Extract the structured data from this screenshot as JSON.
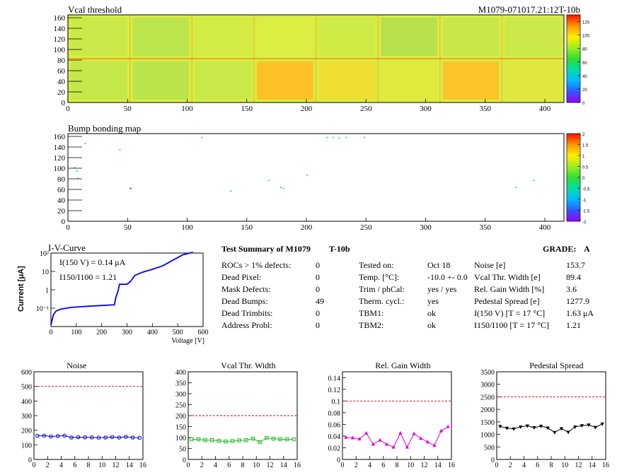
{
  "header": {
    "top_left_title": "Vcal threshold",
    "top_right_id": "M1079-071017.21:12T-10b"
  },
  "vcal_map": {
    "title": "Vcal threshold",
    "x_ticks": [
      "0",
      "50",
      "100",
      "150",
      "200",
      "250",
      "300",
      "350",
      "400"
    ],
    "y_ticks": [
      "0",
      "20",
      "40",
      "60",
      "80",
      "100",
      "120",
      "140",
      "160"
    ],
    "color_ticks": [
      "0",
      "20",
      "40",
      "60",
      "80",
      "100",
      "120"
    ]
  },
  "bump_map": {
    "title": "Bump bonding map",
    "x_ticks": [
      "0",
      "50",
      "100",
      "150",
      "200",
      "250",
      "300",
      "350",
      "400"
    ],
    "y_ticks": [
      "0",
      "20",
      "40",
      "60",
      "80",
      "100",
      "120",
      "140",
      "160"
    ],
    "color_ticks": [
      "-2",
      "-1.5",
      "-1",
      "-0.5",
      "0",
      "0.5",
      "1",
      "1.5",
      "2"
    ]
  },
  "iv_curve": {
    "title": "I-V-Curve",
    "xlabel": "Voltage [V]",
    "ylabel": "Current [μA]",
    "annotation_1": "I(150 V) = 0.14 μA",
    "annotation_2": "I150/I100 = 1.21",
    "x_ticks": [
      "0",
      "100",
      "200",
      "300",
      "400",
      "500",
      "600"
    ],
    "y_ticks": [
      "10⁻¹",
      "1",
      "10",
      "10²"
    ]
  },
  "summary": {
    "title": "Test Summary of M1079",
    "module_type": "T-10b",
    "grade_label": "GRADE:",
    "grade": "A",
    "col1": [
      {
        "label": "ROCs > 1% defects:",
        "value": "0"
      },
      {
        "label": "Dead Pixel:",
        "value": "0"
      },
      {
        "label": "Mask Defects:",
        "value": "0"
      },
      {
        "label": "Dead Bumps:",
        "value": "49"
      },
      {
        "label": "Dead Trimbits:",
        "value": "0"
      },
      {
        "label": "Address Probl:",
        "value": "0"
      }
    ],
    "col2": [
      {
        "label": "Tested on:",
        "value": "Oct 18"
      },
      {
        "label": "Temp. [°C]:",
        "value": "-10.0 +- 0.0"
      },
      {
        "label": "Trim / phCal:",
        "value": "yes / yes"
      },
      {
        "label": "Therm. cycl.:",
        "value": "yes"
      },
      {
        "label": "TBM1:",
        "value": "ok"
      },
      {
        "label": "TBM2:",
        "value": "ok"
      }
    ],
    "col3": [
      {
        "label": "Noise [e]",
        "value": "153.7"
      },
      {
        "label": "Vcal Thr. Width [e]",
        "value": "89.4"
      },
      {
        "label": "Rel. Gain Width [%]",
        "value": "3.6"
      },
      {
        "label": "Pedestal Spread [e]",
        "value": "1277.9"
      },
      {
        "label": "I(150 V) [T = 17 °C]",
        "value": "1.63 μA"
      },
      {
        "label": "I150/I100 [T = 17 °C]",
        "value": "1.21"
      }
    ]
  },
  "chart_data": [
    {
      "type": "line",
      "title": "I-V-Curve",
      "xlabel": "Voltage [V]",
      "ylabel": "Current [μA]",
      "yscale": "log",
      "xlim": [
        0,
        600
      ],
      "ylim": [
        0.01,
        100
      ],
      "x": [
        0,
        5,
        10,
        20,
        40,
        80,
        120,
        160,
        200,
        240,
        250,
        255,
        265,
        270,
        280,
        300,
        315,
        330,
        360,
        400,
        440,
        480,
        520,
        560
      ],
      "y": [
        0.012,
        0.025,
        0.045,
        0.07,
        0.09,
        0.11,
        0.12,
        0.13,
        0.14,
        0.15,
        0.15,
        0.35,
        0.9,
        2.0,
        2.0,
        2.0,
        3.0,
        6.0,
        9.0,
        13.0,
        20.0,
        40.0,
        80.0,
        110.0
      ]
    },
    {
      "type": "line",
      "title": "Noise",
      "xlim": [
        0,
        16
      ],
      "ylim": [
        0,
        600
      ],
      "x_ticks": [
        "0",
        "2",
        "4",
        "6",
        "8",
        "10",
        "12",
        "14",
        "16"
      ],
      "y_ticks": [
        "0",
        "100",
        "200",
        "300",
        "400",
        "500",
        "600"
      ],
      "threshold": 500,
      "color": "#0000cc",
      "x": [
        0,
        1,
        2,
        3,
        4,
        5,
        6,
        7,
        8,
        9,
        10,
        11,
        12,
        13,
        14,
        15
      ],
      "values": [
        162,
        163,
        157,
        160,
        163,
        150,
        152,
        151,
        151,
        149,
        150,
        153,
        150,
        155,
        150,
        148
      ]
    },
    {
      "type": "line",
      "title": "Vcal Thr. Width",
      "xlim": [
        0,
        16
      ],
      "ylim": [
        0,
        400
      ],
      "x_ticks": [
        "0",
        "2",
        "4",
        "6",
        "8",
        "10",
        "12",
        "14",
        "16"
      ],
      "y_ticks": [
        "0",
        "50",
        "100",
        "150",
        "200",
        "250",
        "300",
        "350",
        "400"
      ],
      "threshold": 200,
      "color": "#22bb22",
      "x": [
        0,
        1,
        2,
        3,
        4,
        5,
        6,
        7,
        8,
        9,
        10,
        11,
        12,
        13,
        14,
        15
      ],
      "values": [
        92,
        92,
        88,
        88,
        85,
        82,
        84,
        87,
        88,
        95,
        79,
        98,
        95,
        92,
        92,
        92
      ]
    },
    {
      "type": "line",
      "title": "Rel. Gain Width",
      "xlim": [
        0,
        16
      ],
      "ylim": [
        0,
        0.15
      ],
      "x_ticks": [
        "0",
        "2",
        "4",
        "6",
        "8",
        "10",
        "12",
        "14",
        "16"
      ],
      "y_ticks": [
        "0",
        "0.02",
        "0.04",
        "0.06",
        "0.08",
        "0.1",
        "0.12",
        "0.14"
      ],
      "threshold": 0.1,
      "color": "#dd00dd",
      "x": [
        0,
        1,
        2,
        3,
        4,
        5,
        6,
        7,
        8,
        9,
        10,
        11,
        12,
        13,
        14,
        15
      ],
      "values": [
        0.038,
        0.037,
        0.035,
        0.045,
        0.026,
        0.033,
        0.026,
        0.021,
        0.045,
        0.021,
        0.044,
        0.036,
        0.03,
        0.024,
        0.049,
        0.056
      ]
    },
    {
      "type": "line",
      "title": "Pedestal Spread",
      "xlim": [
        0,
        16
      ],
      "ylim": [
        0,
        3500
      ],
      "x_ticks": [
        "0",
        "2",
        "4",
        "6",
        "8",
        "10",
        "12",
        "14",
        "16"
      ],
      "y_ticks": [
        "0",
        "500",
        "1000",
        "1500",
        "2000",
        "2500",
        "3000",
        "3500"
      ],
      "threshold": 2500,
      "color": "#000000",
      "x": [
        0,
        1,
        2,
        3,
        4,
        5,
        6,
        7,
        8,
        9,
        10,
        11,
        12,
        13,
        14,
        15
      ],
      "values": [
        1320,
        1250,
        1220,
        1300,
        1340,
        1270,
        1330,
        1260,
        1080,
        1230,
        1090,
        1300,
        1350,
        1380,
        1280,
        1420
      ]
    }
  ]
}
